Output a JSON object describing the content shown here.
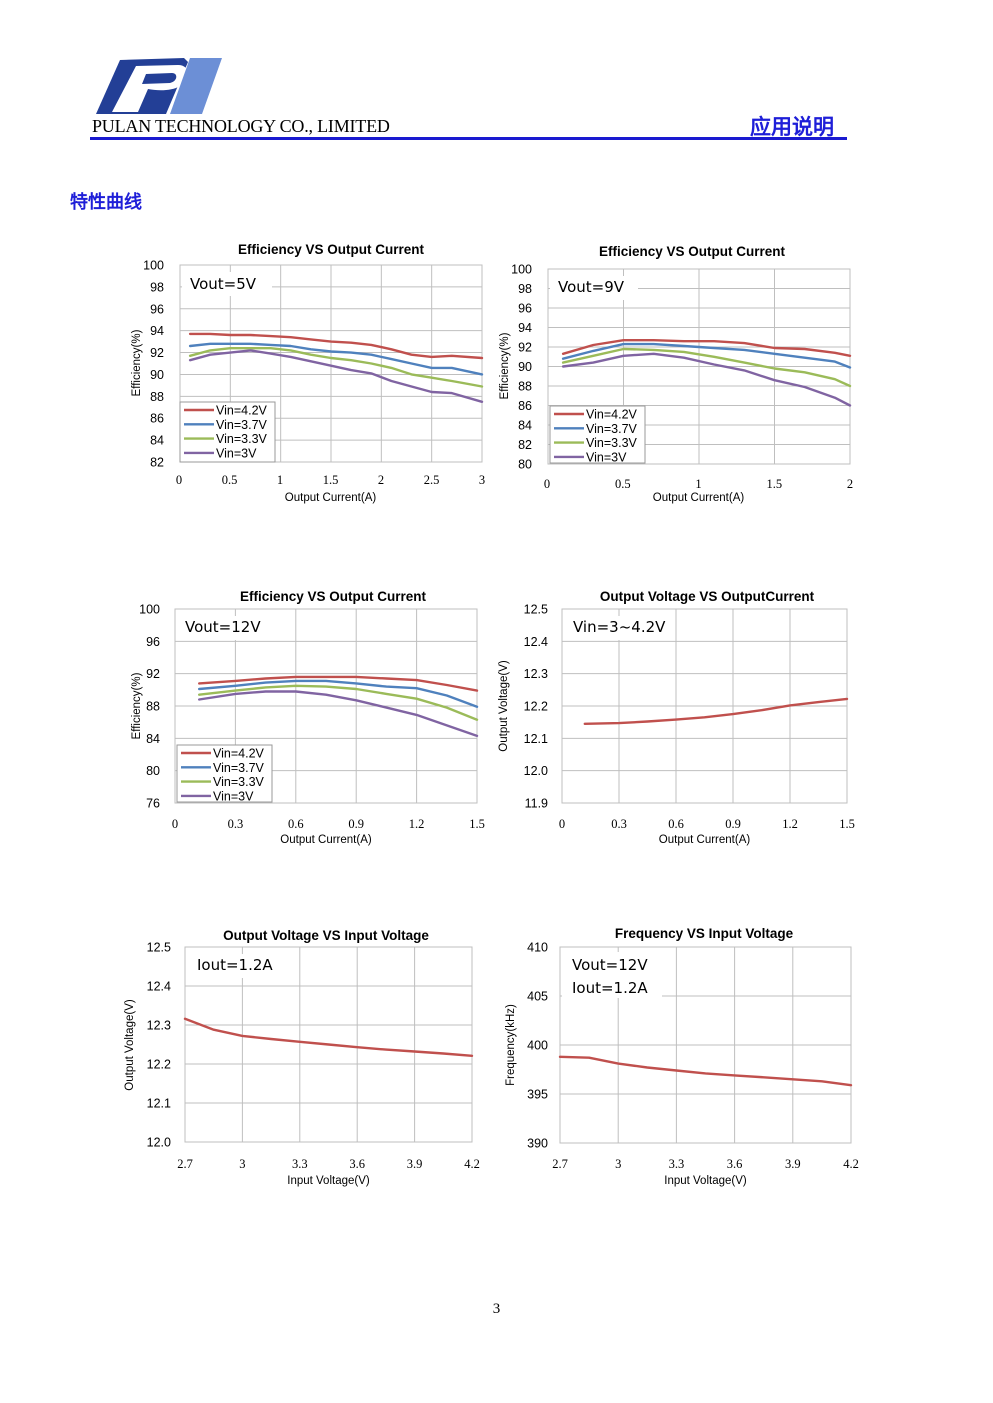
{
  "header": {
    "company": "PULAN TECHNOLOGY CO., LIMITED",
    "doc_type": "应用说明",
    "brand_color": "#1e1ed8"
  },
  "section_title": "特性曲线",
  "page_number": "3",
  "chart_data": [
    {
      "type": "line",
      "title": "Efficiency VS Output Current",
      "annotation": [
        "Vout=5V"
      ],
      "xlabel": "Output Current(A)",
      "ylabel": "Efficiency(%)",
      "xlim": [
        0,
        3
      ],
      "ylim": [
        82,
        100
      ],
      "xticks": [
        "0",
        "0.5",
        "1",
        "1.5",
        "2",
        "2.5",
        "3"
      ],
      "yticks": [
        "82",
        "84",
        "86",
        "88",
        "90",
        "92",
        "94",
        "96",
        "98",
        "100"
      ],
      "grid": true,
      "legend": "bottom-left",
      "x": [
        0.1,
        0.3,
        0.5,
        0.7,
        0.9,
        1.1,
        1.3,
        1.5,
        1.7,
        1.9,
        2.1,
        2.3,
        2.5,
        2.7,
        3.0
      ],
      "series": [
        {
          "name": "Vin=4.2V",
          "color": "#c0504d",
          "values": [
            93.7,
            93.7,
            93.6,
            93.6,
            93.5,
            93.4,
            93.2,
            93.0,
            92.9,
            92.7,
            92.3,
            91.8,
            91.6,
            91.7,
            91.5
          ]
        },
        {
          "name": "Vin=3.7V",
          "color": "#4f81bd",
          "values": [
            92.6,
            92.8,
            92.8,
            92.8,
            92.7,
            92.6,
            92.3,
            92.1,
            92.0,
            91.8,
            91.4,
            91.0,
            90.6,
            90.6,
            90.0
          ]
        },
        {
          "name": "Vin=3.3V",
          "color": "#9bbb59",
          "values": [
            91.7,
            92.2,
            92.4,
            92.4,
            92.4,
            92.2,
            91.8,
            91.5,
            91.3,
            91.0,
            90.6,
            90.0,
            89.7,
            89.4,
            88.9
          ]
        },
        {
          "name": "Vin=3V",
          "color": "#8064a2",
          "values": [
            91.3,
            91.8,
            92.0,
            92.2,
            91.9,
            91.6,
            91.2,
            90.8,
            90.4,
            90.1,
            89.4,
            88.9,
            88.4,
            88.3,
            87.5
          ]
        }
      ]
    },
    {
      "type": "line",
      "title": "Efficiency VS Output Current",
      "annotation": [
        "Vout=9V"
      ],
      "xlabel": "Output Current(A)",
      "ylabel": "Efficiency(%)",
      "xlim": [
        0,
        2
      ],
      "ylim": [
        80,
        100
      ],
      "xticks": [
        "0",
        "0.5",
        "1",
        "1.5",
        "2"
      ],
      "yticks": [
        "80",
        "82",
        "84",
        "86",
        "88",
        "90",
        "92",
        "94",
        "96",
        "98",
        "100"
      ],
      "grid": true,
      "legend": "bottom-left",
      "x": [
        0.1,
        0.3,
        0.5,
        0.7,
        0.9,
        1.1,
        1.3,
        1.5,
        1.7,
        1.9,
        2.0
      ],
      "series": [
        {
          "name": "Vin=4.2V",
          "color": "#c0504d",
          "values": [
            91.3,
            92.2,
            92.7,
            92.7,
            92.6,
            92.6,
            92.4,
            91.9,
            91.8,
            91.4,
            91.1
          ]
        },
        {
          "name": "Vin=3.7V",
          "color": "#4f81bd",
          "values": [
            90.8,
            91.6,
            92.3,
            92.3,
            92.1,
            91.9,
            91.7,
            91.3,
            90.9,
            90.5,
            89.9
          ]
        },
        {
          "name": "Vin=3.3V",
          "color": "#9bbb59",
          "values": [
            90.4,
            91.1,
            91.8,
            91.7,
            91.5,
            91.0,
            90.4,
            89.8,
            89.4,
            88.7,
            88.0
          ]
        },
        {
          "name": "Vin=3V",
          "color": "#8064a2",
          "values": [
            90.0,
            90.4,
            91.1,
            91.3,
            90.9,
            90.2,
            89.6,
            88.6,
            87.9,
            86.8,
            86.0
          ]
        }
      ]
    },
    {
      "type": "line",
      "title": "Efficiency VS Output Current",
      "annotation": [
        "Vout=12V"
      ],
      "xlabel": "Output Current(A)",
      "ylabel": "Efficiency(%)",
      "xlim": [
        0,
        1.5
      ],
      "ylim": [
        76,
        100
      ],
      "xticks": [
        "0",
        "0.3",
        "0.6",
        "0.9",
        "1.2",
        "1.5"
      ],
      "yticks": [
        "76",
        "80",
        "84",
        "88",
        "92",
        "96",
        "100"
      ],
      "grid": true,
      "legend": "bottom-left",
      "x": [
        0.12,
        0.3,
        0.45,
        0.6,
        0.75,
        0.9,
        1.05,
        1.2,
        1.35,
        1.5
      ],
      "series": [
        {
          "name": "Vin=4.2V",
          "color": "#c0504d",
          "values": [
            90.8,
            91.1,
            91.4,
            91.6,
            91.6,
            91.6,
            91.4,
            91.2,
            90.6,
            89.9
          ]
        },
        {
          "name": "Vin=3.7V",
          "color": "#4f81bd",
          "values": [
            90.1,
            90.5,
            90.9,
            91.1,
            91.1,
            90.8,
            90.4,
            90.2,
            89.3,
            87.9
          ]
        },
        {
          "name": "Vin=3.3V",
          "color": "#9bbb59",
          "values": [
            89.4,
            89.9,
            90.3,
            90.5,
            90.4,
            90.1,
            89.5,
            88.9,
            87.8,
            86.3
          ]
        },
        {
          "name": "Vin=3V",
          "color": "#8064a2",
          "values": [
            88.8,
            89.5,
            89.8,
            89.8,
            89.4,
            88.7,
            87.8,
            86.9,
            85.6,
            84.3
          ]
        }
      ]
    },
    {
      "type": "line",
      "title": "Output Voltage VS OutputCurrent",
      "annotation": [
        "Vin=3~4.2V"
      ],
      "xlabel": "Output Current(A)",
      "ylabel": "Output Voltage(V)",
      "xlim": [
        0,
        1.5
      ],
      "ylim": [
        11.9,
        12.5
      ],
      "xticks": [
        "0",
        "0.3",
        "0.6",
        "0.9",
        "1.2",
        "1.5"
      ],
      "yticks": [
        "11.9",
        "12.0",
        "12.1",
        "12.2",
        "12.3",
        "12.4",
        "12.5"
      ],
      "grid": true,
      "x": [
        0.12,
        0.3,
        0.45,
        0.6,
        0.75,
        0.9,
        1.05,
        1.2,
        1.35,
        1.5
      ],
      "series": [
        {
          "name": "",
          "color": "#c0504d",
          "values": [
            12.145,
            12.147,
            12.152,
            12.158,
            12.165,
            12.175,
            12.187,
            12.202,
            12.212,
            12.222
          ]
        }
      ]
    },
    {
      "type": "line",
      "title": "Output Voltage VS Input Voltage",
      "annotation": [
        "Iout=1.2A"
      ],
      "xlabel": "Input Voltage(V)",
      "ylabel": "Output Voltage(V)",
      "xlim": [
        2.7,
        4.2
      ],
      "ylim": [
        12.0,
        12.5
      ],
      "xticks": [
        "2.7",
        "3",
        "3.3",
        "3.6",
        "3.9",
        "4.2"
      ],
      "yticks": [
        "12.0",
        "12.1",
        "12.2",
        "12.3",
        "12.4",
        "12.5"
      ],
      "grid": true,
      "x": [
        2.7,
        2.85,
        3.0,
        3.15,
        3.3,
        3.45,
        3.6,
        3.75,
        3.9,
        4.05,
        4.2
      ],
      "series": [
        {
          "name": "",
          "color": "#c0504d",
          "values": [
            12.316,
            12.288,
            12.272,
            12.264,
            12.257,
            12.25,
            12.243,
            12.237,
            12.232,
            12.227,
            12.221
          ]
        }
      ]
    },
    {
      "type": "line",
      "title": "Frequency VS Input Voltage",
      "annotation": [
        "Vout=12V",
        "Iout=1.2A"
      ],
      "xlabel": "Input Voltage(V)",
      "ylabel": "Frequency(kHz)",
      "xlim": [
        2.7,
        4.2
      ],
      "ylim": [
        390,
        410
      ],
      "xticks": [
        "2.7",
        "3",
        "3.3",
        "3.6",
        "3.9",
        "4.2"
      ],
      "yticks": [
        "390",
        "395",
        "400",
        "405",
        "410"
      ],
      "grid": true,
      "x": [
        2.7,
        2.85,
        3.0,
        3.15,
        3.3,
        3.45,
        3.6,
        3.75,
        3.9,
        4.05,
        4.2
      ],
      "series": [
        {
          "name": "",
          "color": "#c0504d",
          "values": [
            398.8,
            398.7,
            398.1,
            397.7,
            397.4,
            397.1,
            396.9,
            396.7,
            396.5,
            396.3,
            395.9
          ]
        }
      ]
    }
  ]
}
